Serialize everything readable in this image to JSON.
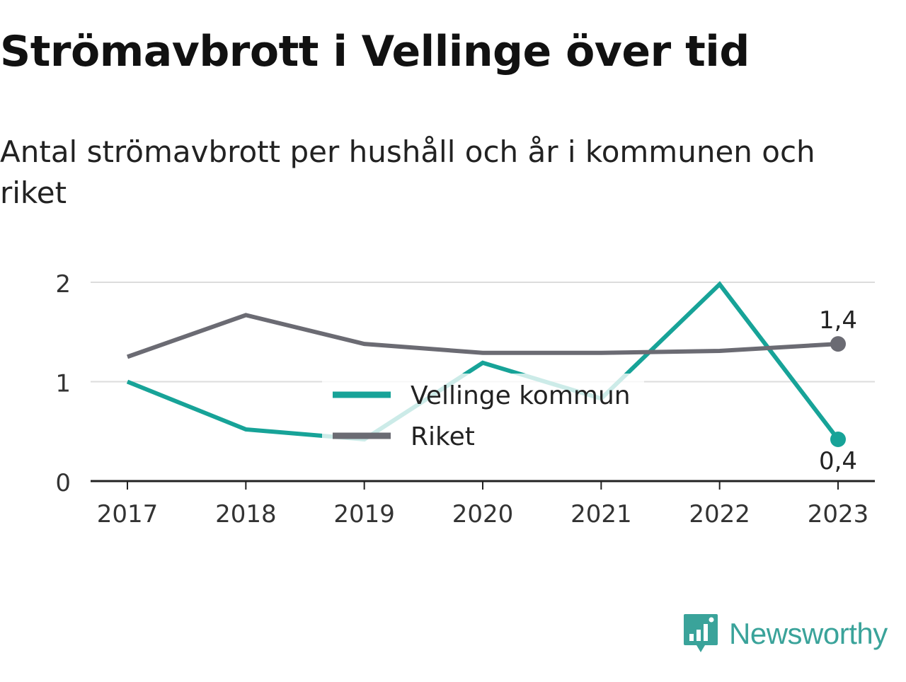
{
  "title": "Strömavbrott i Vellinge över tid",
  "subtitle": "Antal strömavbrott per hushåll och år i kommunen och riket",
  "brand": {
    "name": "Newsworthy",
    "icon": "newsworthy-logo-icon",
    "color": "#3aa39a"
  },
  "chart_data": {
    "type": "line",
    "categories": [
      "2017",
      "2018",
      "2019",
      "2020",
      "2021",
      "2022",
      "2023"
    ],
    "series": [
      {
        "name": "Vellinge kommun",
        "color": "#17a398",
        "values": [
          1.0,
          0.52,
          0.42,
          1.19,
          0.83,
          1.98,
          0.42
        ],
        "end_label": "0,4"
      },
      {
        "name": "Riket",
        "color": "#6b6b73",
        "values": [
          1.25,
          1.67,
          1.38,
          1.29,
          1.29,
          1.31,
          1.38
        ],
        "end_label": "1,4"
      }
    ],
    "yticks": [
      "0",
      "1",
      "2"
    ],
    "ylim": [
      0,
      2
    ],
    "grid": true,
    "legend": "center"
  }
}
